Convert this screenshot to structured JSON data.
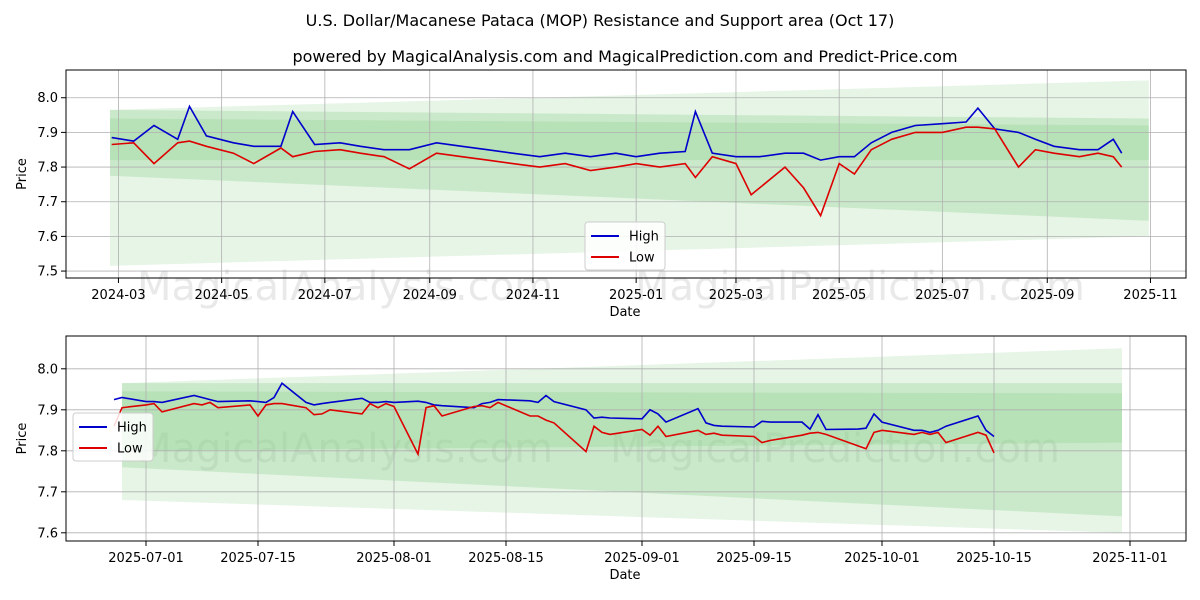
{
  "title": "U.S. Dollar/Macanese Pataca (MOP) Resistance and Support area (Oct 17)",
  "subtitle": "powered by MagicalAnalysis.com and MagicalPrediction.com and Predict-Price.com",
  "watermarks": [
    "MagicalAnalysis.com",
    "MagicalPrediction.com"
  ],
  "colors": {
    "high": "#0000cc",
    "low": "#dd0000",
    "band": "#8fd18f",
    "grid": "#b0b0b0"
  },
  "chart_data": [
    {
      "type": "line",
      "id": "top",
      "xlabel": "Date",
      "ylabel": "Price",
      "xlim": [
        "2024-01-30",
        "2025-11-22"
      ],
      "ylim": [
        7.48,
        8.08
      ],
      "xticks": [
        "2024-03-01",
        "2024-05-01",
        "2024-07-01",
        "2024-09-01",
        "2024-11-01",
        "2025-01-01",
        "2025-03-01",
        "2025-05-01",
        "2025-07-01",
        "2025-09-01",
        "2025-11-01"
      ],
      "xtick_labels": [
        "2024-03",
        "2024-05",
        "2024-07",
        "2024-09",
        "2024-11",
        "2025-01",
        "2025-03",
        "2025-05",
        "2025-07",
        "2025-09",
        "2025-11"
      ],
      "yticks": [
        7.5,
        7.6,
        7.7,
        7.8,
        7.9,
        8.0
      ],
      "ytick_labels": [
        "7.5",
        "7.6",
        "7.7",
        "7.8",
        "7.9",
        "8.0"
      ],
      "legend": {
        "position": "bottom-center",
        "entries": [
          "High",
          "Low"
        ]
      },
      "bands": [
        {
          "x": [
            "2024-02-25",
            "2025-10-31"
          ],
          "upper": [
            7.965,
            8.05
          ],
          "lower": [
            7.515,
            7.6
          ],
          "opacity": 0.22
        },
        {
          "x": [
            "2024-02-25",
            "2025-10-31"
          ],
          "upper": [
            7.965,
            7.94
          ],
          "lower": [
            7.775,
            7.645
          ],
          "opacity": 0.32
        },
        {
          "x": [
            "2024-02-25",
            "2025-10-31"
          ],
          "upper": [
            7.94,
            7.92
          ],
          "lower": [
            7.82,
            7.82
          ],
          "opacity": 0.32
        }
      ],
      "series": [
        {
          "name": "High",
          "x": [
            "2024-02-26",
            "2024-03-10",
            "2024-03-22",
            "2024-04-05",
            "2024-04-12",
            "2024-04-22",
            "2024-05-08",
            "2024-05-20",
            "2024-06-05",
            "2024-06-12",
            "2024-06-25",
            "2024-07-10",
            "2024-07-22",
            "2024-08-05",
            "2024-08-20",
            "2024-09-05",
            "2024-09-20",
            "2024-10-05",
            "2024-10-20",
            "2024-11-05",
            "2024-11-20",
            "2024-12-05",
            "2024-12-20",
            "2025-01-01",
            "2025-01-15",
            "2025-01-30",
            "2025-02-05",
            "2025-02-15",
            "2025-03-01",
            "2025-03-15",
            "2025-03-30",
            "2025-04-10",
            "2025-04-20",
            "2025-05-01",
            "2025-05-10",
            "2025-05-20",
            "2025-06-01",
            "2025-06-15",
            "2025-07-01",
            "2025-07-15",
            "2025-07-22",
            "2025-08-01",
            "2025-08-15",
            "2025-08-25",
            "2025-09-05",
            "2025-09-20",
            "2025-10-01",
            "2025-10-10",
            "2025-10-15"
          ],
          "y": [
            7.885,
            7.875,
            7.92,
            7.88,
            7.975,
            7.89,
            7.87,
            7.86,
            7.86,
            7.96,
            7.865,
            7.87,
            7.86,
            7.85,
            7.85,
            7.87,
            7.86,
            7.85,
            7.84,
            7.83,
            7.84,
            7.83,
            7.84,
            7.83,
            7.84,
            7.845,
            7.96,
            7.84,
            7.83,
            7.83,
            7.84,
            7.84,
            7.82,
            7.83,
            7.83,
            7.87,
            7.9,
            7.92,
            7.925,
            7.93,
            7.97,
            7.91,
            7.9,
            7.88,
            7.86,
            7.85,
            7.85,
            7.88,
            7.84
          ]
        },
        {
          "name": "Low",
          "x": [
            "2024-02-26",
            "2024-03-10",
            "2024-03-22",
            "2024-04-05",
            "2024-04-12",
            "2024-04-22",
            "2024-05-08",
            "2024-05-20",
            "2024-06-05",
            "2024-06-12",
            "2024-06-25",
            "2024-07-10",
            "2024-07-22",
            "2024-08-05",
            "2024-08-20",
            "2024-09-05",
            "2024-09-20",
            "2024-10-05",
            "2024-10-20",
            "2024-11-05",
            "2024-11-20",
            "2024-12-05",
            "2024-12-20",
            "2025-01-01",
            "2025-01-15",
            "2025-01-30",
            "2025-02-05",
            "2025-02-15",
            "2025-03-01",
            "2025-03-10",
            "2025-03-30",
            "2025-04-10",
            "2025-04-20",
            "2025-05-01",
            "2025-05-10",
            "2025-05-20",
            "2025-06-01",
            "2025-06-15",
            "2025-07-01",
            "2025-07-15",
            "2025-07-22",
            "2025-08-01",
            "2025-08-15",
            "2025-08-25",
            "2025-09-05",
            "2025-09-20",
            "2025-10-01",
            "2025-10-10",
            "2025-10-15"
          ],
          "y": [
            7.865,
            7.87,
            7.81,
            7.87,
            7.875,
            7.86,
            7.84,
            7.81,
            7.855,
            7.83,
            7.845,
            7.85,
            7.84,
            7.83,
            7.795,
            7.84,
            7.83,
            7.82,
            7.81,
            7.8,
            7.81,
            7.79,
            7.8,
            7.81,
            7.8,
            7.81,
            7.77,
            7.83,
            7.81,
            7.72,
            7.8,
            7.74,
            7.66,
            7.81,
            7.78,
            7.85,
            7.88,
            7.9,
            7.9,
            7.915,
            7.915,
            7.91,
            7.8,
            7.85,
            7.84,
            7.83,
            7.84,
            7.83,
            7.8
          ]
        }
      ]
    },
    {
      "type": "line",
      "id": "bottom",
      "xlabel": "Date",
      "ylabel": "Price",
      "xlim": [
        "2025-06-21",
        "2025-11-08"
      ],
      "ylim": [
        7.58,
        8.08
      ],
      "xticks": [
        "2025-07-01",
        "2025-07-15",
        "2025-08-01",
        "2025-08-15",
        "2025-09-01",
        "2025-09-15",
        "2025-10-01",
        "2025-10-15",
        "2025-11-01"
      ],
      "xtick_labels": [
        "2025-07-01",
        "2025-07-15",
        "2025-08-01",
        "2025-08-15",
        "2025-09-01",
        "2025-09-15",
        "2025-10-01",
        "2025-10-15",
        "2025-11-01"
      ],
      "yticks": [
        7.6,
        7.7,
        7.8,
        7.9,
        8.0
      ],
      "ytick_labels": [
        "7.6",
        "7.7",
        "7.8",
        "7.9",
        "8.0"
      ],
      "legend": {
        "position": "upper-left",
        "entries": [
          "High",
          "Low"
        ]
      },
      "bands": [
        {
          "x": [
            "2025-06-28",
            "2025-10-31"
          ],
          "upper": [
            7.965,
            8.05
          ],
          "lower": [
            7.68,
            7.6
          ],
          "opacity": 0.22
        },
        {
          "x": [
            "2025-06-28",
            "2025-10-31"
          ],
          "upper": [
            7.965,
            7.965
          ],
          "lower": [
            7.76,
            7.64
          ],
          "opacity": 0.32
        },
        {
          "x": [
            "2025-06-28",
            "2025-10-31"
          ],
          "upper": [
            7.945,
            7.94
          ],
          "lower": [
            7.8,
            7.82
          ],
          "opacity": 0.32
        }
      ],
      "series": [
        {
          "name": "High",
          "x": [
            "2025-06-27",
            "2025-06-28",
            "2025-07-01",
            "2025-07-02",
            "2025-07-03",
            "2025-07-07",
            "2025-07-08",
            "2025-07-09",
            "2025-07-10",
            "2025-07-14",
            "2025-07-15",
            "2025-07-16",
            "2025-07-17",
            "2025-07-18",
            "2025-07-21",
            "2025-07-22",
            "2025-07-23",
            "2025-07-24",
            "2025-07-28",
            "2025-07-29",
            "2025-07-30",
            "2025-07-31",
            "2025-08-01",
            "2025-08-04",
            "2025-08-05",
            "2025-08-06",
            "2025-08-07",
            "2025-08-11",
            "2025-08-12",
            "2025-08-13",
            "2025-08-14",
            "2025-08-18",
            "2025-08-19",
            "2025-08-20",
            "2025-08-21",
            "2025-08-25",
            "2025-08-26",
            "2025-08-27",
            "2025-08-28",
            "2025-09-01",
            "2025-09-02",
            "2025-09-03",
            "2025-09-04",
            "2025-09-08",
            "2025-09-09",
            "2025-09-10",
            "2025-09-11",
            "2025-09-15",
            "2025-09-16",
            "2025-09-17",
            "2025-09-21",
            "2025-09-22",
            "2025-09-23",
            "2025-09-24",
            "2025-09-28",
            "2025-09-29",
            "2025-09-30",
            "2025-10-01",
            "2025-10-05",
            "2025-10-06",
            "2025-10-07",
            "2025-10-08",
            "2025-10-09",
            "2025-10-13",
            "2025-10-14",
            "2025-10-15"
          ],
          "y": [
            7.925,
            7.93,
            7.92,
            7.92,
            7.918,
            7.935,
            7.93,
            7.925,
            7.92,
            7.922,
            7.92,
            7.918,
            7.93,
            7.965,
            7.918,
            7.912,
            7.915,
            7.918,
            7.928,
            7.918,
            7.918,
            7.92,
            7.918,
            7.921,
            7.918,
            7.912,
            7.91,
            7.905,
            7.915,
            7.918,
            7.925,
            7.922,
            7.918,
            7.935,
            7.92,
            7.9,
            7.88,
            7.882,
            7.88,
            7.878,
            7.9,
            7.89,
            7.87,
            7.903,
            7.868,
            7.862,
            7.86,
            7.858,
            7.872,
            7.87,
            7.87,
            7.853,
            7.888,
            7.852,
            7.853,
            7.855,
            7.89,
            7.87,
            7.85,
            7.85,
            7.845,
            7.85,
            7.86,
            7.885,
            7.85,
            7.835
          ]
        },
        {
          "name": "Low",
          "x": [
            "2025-06-27",
            "2025-06-28",
            "2025-07-01",
            "2025-07-02",
            "2025-07-03",
            "2025-07-07",
            "2025-07-08",
            "2025-07-09",
            "2025-07-10",
            "2025-07-14",
            "2025-07-15",
            "2025-07-16",
            "2025-07-17",
            "2025-07-18",
            "2025-07-21",
            "2025-07-22",
            "2025-07-23",
            "2025-07-24",
            "2025-07-28",
            "2025-07-29",
            "2025-07-30",
            "2025-07-31",
            "2025-08-01",
            "2025-08-04",
            "2025-08-05",
            "2025-08-06",
            "2025-08-07",
            "2025-08-11",
            "2025-08-12",
            "2025-08-13",
            "2025-08-14",
            "2025-08-18",
            "2025-08-19",
            "2025-08-20",
            "2025-08-21",
            "2025-08-25",
            "2025-08-26",
            "2025-08-27",
            "2025-08-28",
            "2025-09-01",
            "2025-09-02",
            "2025-09-03",
            "2025-09-04",
            "2025-09-08",
            "2025-09-09",
            "2025-09-10",
            "2025-09-11",
            "2025-09-15",
            "2025-09-16",
            "2025-09-17",
            "2025-09-21",
            "2025-09-22",
            "2025-09-23",
            "2025-09-24",
            "2025-09-28",
            "2025-09-29",
            "2025-09-30",
            "2025-10-01",
            "2025-10-05",
            "2025-10-06",
            "2025-10-07",
            "2025-10-08",
            "2025-10-09",
            "2025-10-13",
            "2025-10-14",
            "2025-10-15"
          ],
          "y": [
            7.86,
            7.905,
            7.912,
            7.915,
            7.895,
            7.915,
            7.912,
            7.918,
            7.905,
            7.912,
            7.885,
            7.912,
            7.915,
            7.915,
            7.905,
            7.888,
            7.89,
            7.9,
            7.89,
            7.915,
            7.905,
            7.915,
            7.908,
            7.792,
            7.905,
            7.91,
            7.885,
            7.908,
            7.91,
            7.905,
            7.918,
            7.885,
            7.885,
            7.875,
            7.868,
            7.798,
            7.86,
            7.845,
            7.84,
            7.852,
            7.838,
            7.86,
            7.835,
            7.85,
            7.84,
            7.843,
            7.838,
            7.835,
            7.82,
            7.825,
            7.838,
            7.843,
            7.845,
            7.84,
            7.812,
            7.805,
            7.845,
            7.85,
            7.84,
            7.845,
            7.84,
            7.845,
            7.82,
            7.845,
            7.838,
            7.795
          ]
        }
      ]
    }
  ]
}
